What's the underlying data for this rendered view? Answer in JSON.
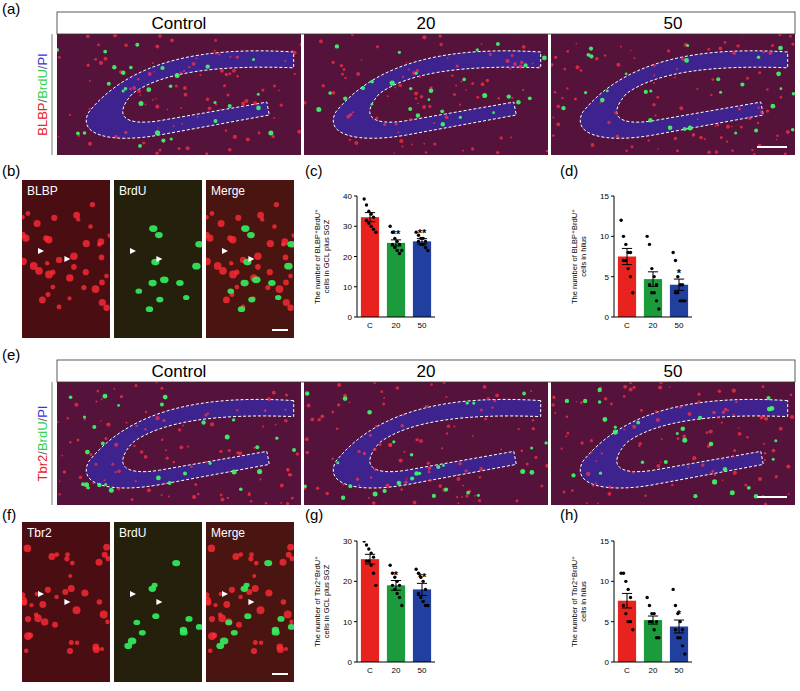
{
  "image_panels": [
    {
      "label": "(a)",
      "type": "overview",
      "stains": [
        "BLBP",
        "BrdU",
        "PI"
      ],
      "stain_colors": [
        "#e8221f",
        "#2bd14f",
        "#3535e0"
      ],
      "separator": "/",
      "columns": [
        "Control",
        "20",
        "50"
      ]
    },
    {
      "label": "(b)",
      "type": "zoom",
      "columns": [
        "BLBP",
        "BrdU",
        "Merge"
      ]
    },
    {
      "label": "(e)",
      "type": "overview",
      "stains": [
        "Tbr2",
        "BrdU",
        "PI"
      ],
      "stain_colors": [
        "#e8221f",
        "#2bd14f",
        "#3535e0"
      ],
      "separator": "/",
      "columns": [
        "Control",
        "20",
        "50"
      ]
    },
    {
      "label": "(f)",
      "type": "zoom",
      "columns": [
        "Tbr2",
        "BrdU",
        "Merge"
      ]
    }
  ],
  "chart_data": [
    {
      "type": "bar",
      "panel_label": "(c)",
      "y_label": [
        "The number of BLBP⁺BrdU⁺",
        "cells in GCL plus SGZ"
      ],
      "categories": [
        "C",
        "20",
        "50"
      ],
      "values": [
        33,
        24.5,
        25
      ],
      "errors": [
        1.5,
        1,
        0.9
      ],
      "points": [
        [
          39,
          37,
          35,
          34,
          33,
          32,
          31,
          30,
          29,
          28
        ],
        [
          30,
          28,
          26,
          25,
          24,
          24,
          23,
          22,
          21,
          22
        ],
        [
          28,
          27,
          26,
          26,
          25,
          25,
          24,
          24,
          23,
          22
        ]
      ],
      "colors": [
        "#e8221f",
        "#1c9b3c",
        "#213f9e"
      ],
      "ylim": [
        0,
        40
      ],
      "yticks": [
        0,
        10,
        20,
        30,
        40
      ],
      "annotations": [
        {
          "category": "20",
          "text": "**"
        },
        {
          "category": "50",
          "text": "**"
        }
      ]
    },
    {
      "type": "bar",
      "panel_label": "(d)",
      "y_label": [
        "The number of BLBP⁺BrdU⁺",
        "cells in hilus"
      ],
      "categories": [
        "C",
        "20",
        "50"
      ],
      "values": [
        7.5,
        4.7,
        4.0
      ],
      "errors": [
        1,
        0.9,
        0.7
      ],
      "points": [
        [
          12,
          10,
          9,
          8,
          8,
          7,
          7,
          6,
          5,
          3
        ],
        [
          10,
          9,
          6,
          5,
          4,
          4,
          3,
          3,
          2,
          1
        ],
        [
          8,
          7,
          5,
          4,
          4,
          3,
          3,
          2,
          2,
          2
        ]
      ],
      "colors": [
        "#e8221f",
        "#1c9b3c",
        "#213f9e"
      ],
      "ylim": [
        0,
        15
      ],
      "yticks": [
        0,
        5,
        10,
        15
      ],
      "annotations": [
        {
          "category": "50",
          "text": "*"
        }
      ]
    },
    {
      "type": "bar",
      "panel_label": "(g)",
      "y_label": [
        "The number of Tbr2⁺BrdU⁺",
        "cells in GCL plus SGZ"
      ],
      "categories": [
        "C",
        "20",
        "50"
      ],
      "values": [
        25.5,
        19,
        18
      ],
      "errors": [
        1.2,
        1.2,
        1.5
      ],
      "points": [
        [
          30,
          29,
          28,
          27,
          26,
          25,
          25,
          24,
          22,
          19
        ],
        [
          24,
          22,
          21,
          20,
          19,
          19,
          18,
          17,
          16,
          14
        ],
        [
          23,
          22,
          21,
          20,
          18,
          17,
          16,
          15,
          14,
          14
        ]
      ],
      "colors": [
        "#e8221f",
        "#1c9b3c",
        "#213f9e"
      ],
      "ylim": [
        0,
        30
      ],
      "yticks": [
        0,
        10,
        20,
        30
      ],
      "annotations": [
        {
          "category": "20",
          "text": "*"
        },
        {
          "category": "50",
          "text": "**"
        }
      ]
    },
    {
      "type": "bar",
      "panel_label": "(h)",
      "y_label": [
        "The number of Tbr2⁺BrdU⁺",
        "cells in hilus"
      ],
      "categories": [
        "C",
        "20",
        "50"
      ],
      "values": [
        7.6,
        5.2,
        4.4
      ],
      "errors": [
        0.9,
        0.5,
        0.8
      ],
      "points": [
        [
          11,
          11,
          10,
          9,
          8,
          7,
          6,
          5,
          5,
          4
        ],
        [
          8,
          7,
          6,
          6,
          5,
          5,
          5,
          4,
          3,
          3
        ],
        [
          9,
          7,
          6,
          5,
          4,
          4,
          3,
          3,
          2,
          1
        ]
      ],
      "colors": [
        "#e8221f",
        "#1c9b3c",
        "#213f9e"
      ],
      "ylim": [
        0,
        15
      ],
      "yticks": [
        0,
        5,
        10,
        15
      ],
      "annotations": [
        {
          "category": "50",
          "text": "*"
        }
      ]
    }
  ]
}
